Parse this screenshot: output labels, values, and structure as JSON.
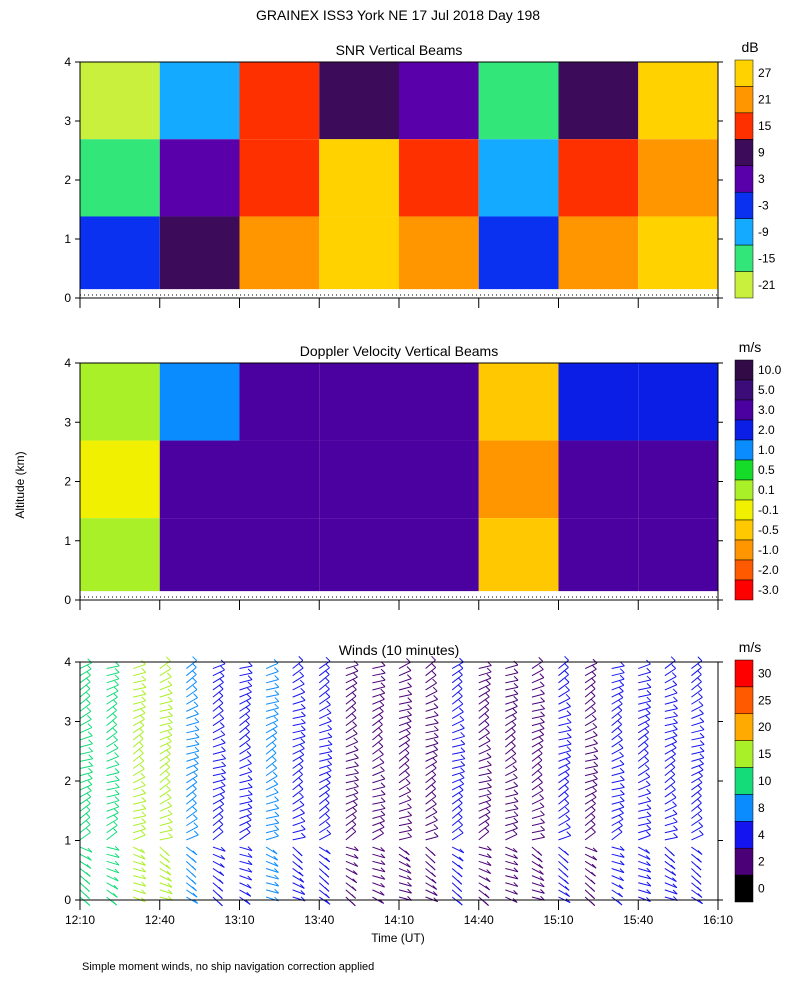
{
  "page": {
    "title": "GRAINEX ISS3 York NE   17 Jul 2018 Day 198",
    "footnote": "Simple moment winds, no ship navigation correction applied",
    "ylabel": "Altitude (km)",
    "xlabel": "Time (UT)"
  },
  "chart_data": [
    {
      "type": "heatmap",
      "title": "SNR Vertical Beams",
      "unit": "dB",
      "x_ticks": [
        "12:10",
        "12:40",
        "13:10",
        "13:40",
        "14:10",
        "14:40",
        "15:10",
        "15:40",
        "16:10"
      ],
      "y_ticks": [
        0,
        1,
        2,
        3,
        4
      ],
      "ylim": [
        0,
        4
      ],
      "colorbar": {
        "labels": [
          "27",
          "21",
          "15",
          "9",
          "3",
          "-3",
          "-9",
          "-15",
          "-21"
        ],
        "colors": [
          "#ffd200",
          "#ff9600",
          "#ff3000",
          "#3c0c5a",
          "#5a00aa",
          "#0a30f0",
          "#14aaff",
          "#32e67a",
          "#c8f03c"
        ]
      },
      "columns": [
        {
          "t0": "12:10",
          "t1": "12:40",
          "low": "#0a30f0",
          "mid": "#32e67a",
          "high": "#c8f03c"
        },
        {
          "t0": "12:40",
          "t1": "13:10",
          "low": "#3c0c5a",
          "mid": "#5a00aa",
          "high": "#14aaff"
        },
        {
          "t0": "13:10",
          "t1": "13:40",
          "low": "#ff9600",
          "mid": "#ff3000",
          "high": "#ff3000"
        },
        {
          "t0": "13:40",
          "t1": "14:10",
          "low": "#ffd200",
          "mid": "#ffd200",
          "high": "#3c0c5a"
        },
        {
          "t0": "14:10",
          "t1": "14:40",
          "low": "#ff9600",
          "mid": "#ff3000",
          "high": "#5a00aa"
        },
        {
          "t0": "14:40",
          "t1": "15:10",
          "low": "#0a30f0",
          "mid": "#14aaff",
          "high": "#32e67a"
        },
        {
          "t0": "15:10",
          "t1": "15:40",
          "low": "#ff9600",
          "mid": "#ff3000",
          "high": "#3c0c5a"
        },
        {
          "t0": "15:40",
          "t1": "16:10",
          "low": "#ffd200",
          "mid": "#ff9600",
          "high": "#ffd200"
        }
      ]
    },
    {
      "type": "heatmap",
      "title": "Doppler Velocity Vertical Beams",
      "unit": "m/s",
      "x_ticks": [
        "12:10",
        "12:40",
        "13:10",
        "13:40",
        "14:10",
        "14:40",
        "15:10",
        "15:40",
        "16:10"
      ],
      "y_ticks": [
        0,
        1,
        2,
        3,
        4
      ],
      "ylim": [
        0,
        4
      ],
      "colorbar": {
        "labels": [
          "10.0",
          "5.0",
          "3.0",
          "2.0",
          "1.0",
          "0.5",
          "0.1",
          "-0.1",
          "-0.5",
          "-1.0",
          "-2.0",
          "-3.0"
        ],
        "colors": [
          "#320a46",
          "#3c0c78",
          "#4b00a0",
          "#0a1ee6",
          "#0a8cff",
          "#14dc28",
          "#aaf028",
          "#f0f000",
          "#ffc800",
          "#ff9600",
          "#ff5a00",
          "#ff0000"
        ]
      },
      "columns": [
        {
          "t0": "12:10",
          "t1": "12:40",
          "low": "#aaf028",
          "mid": "#f0f000",
          "high": "#aaf028"
        },
        {
          "t0": "12:40",
          "t1": "13:10",
          "low": "#4b00a0",
          "mid": "#4b00a0",
          "high": "#0a8cff"
        },
        {
          "t0": "13:10",
          "t1": "13:40",
          "low": "#4b00a0",
          "mid": "#4b00a0",
          "high": "#4b00a0"
        },
        {
          "t0": "13:40",
          "t1": "14:10",
          "low": "#4b00a0",
          "mid": "#4b00a0",
          "high": "#4b00a0"
        },
        {
          "t0": "14:10",
          "t1": "14:40",
          "low": "#4b00a0",
          "mid": "#4b00a0",
          "high": "#4b00a0"
        },
        {
          "t0": "14:40",
          "t1": "15:10",
          "low": "#ffc800",
          "mid": "#ff9600",
          "high": "#ffc800"
        },
        {
          "t0": "15:10",
          "t1": "15:40",
          "low": "#4b00a0",
          "mid": "#4b00a0",
          "high": "#0a1ee6"
        },
        {
          "t0": "15:40",
          "t1": "16:10",
          "low": "#4b00a0",
          "mid": "#4b00a0",
          "high": "#0a1ee6"
        }
      ]
    },
    {
      "type": "wind-barbs",
      "title": "Winds (10 minutes)",
      "unit": "m/s",
      "x_ticks": [
        "12:10",
        "12:40",
        "13:10",
        "13:40",
        "14:10",
        "14:40",
        "15:10",
        "15:40",
        "16:10"
      ],
      "y_ticks": [
        0,
        1,
        2,
        3,
        4
      ],
      "ylim": [
        0,
        4
      ],
      "colorbar": {
        "labels": [
          "30",
          "25",
          "20",
          "15",
          "10",
          "8",
          "4",
          "2",
          "0"
        ],
        "colors": [
          "#ff0000",
          "#ff5a00",
          "#ffaa00",
          "#aaf028",
          "#14dc78",
          "#0a8cff",
          "#1414f0",
          "#4b0078",
          "#000000"
        ]
      },
      "interval_minutes": 10,
      "profiles": [
        {
          "time": "12:10",
          "color": "#14dc78"
        },
        {
          "time": "12:20",
          "color": "#14dc78"
        },
        {
          "time": "12:30",
          "color": "#aaf028"
        },
        {
          "time": "12:40",
          "color": "#aaf028"
        },
        {
          "time": "12:50",
          "color": "#0a8cff"
        },
        {
          "time": "13:00",
          "color": "#1414f0"
        },
        {
          "time": "13:10",
          "color": "#1414f0"
        },
        {
          "time": "13:20",
          "color": "#0a8cff"
        },
        {
          "time": "13:30",
          "color": "#1414f0"
        },
        {
          "time": "13:40",
          "color": "#1414f0"
        },
        {
          "time": "13:50",
          "color": "#4b0078"
        },
        {
          "time": "14:00",
          "color": "#4b0078"
        },
        {
          "time": "14:10",
          "color": "#4b0078"
        },
        {
          "time": "14:20",
          "color": "#4b0078"
        },
        {
          "time": "14:30",
          "color": "#1414f0"
        },
        {
          "time": "14:40",
          "color": "#4b0078"
        },
        {
          "time": "14:50",
          "color": "#4b0078"
        },
        {
          "time": "15:00",
          "color": "#4b0078"
        },
        {
          "time": "15:10",
          "color": "#1414f0"
        },
        {
          "time": "15:20",
          "color": "#4b0078"
        },
        {
          "time": "15:30",
          "color": "#1414f0"
        },
        {
          "time": "15:40",
          "color": "#1414f0"
        },
        {
          "time": "15:50",
          "color": "#1414f0"
        },
        {
          "time": "16:00",
          "color": "#1414f0"
        }
      ]
    }
  ]
}
